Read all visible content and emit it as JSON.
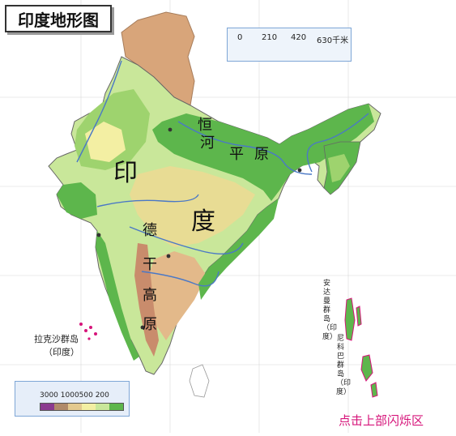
{
  "title": "印度地形图",
  "scale": {
    "ticks": [
      "0",
      "210",
      "420",
      "630千米"
    ]
  },
  "regions": {
    "india_big_1": "印",
    "india_big_2": "度",
    "gangetic": [
      "恒",
      "河",
      "平",
      "原"
    ],
    "deccan": [
      "德",
      "干",
      "高",
      "原"
    ],
    "lakshadweep": "拉克沙群岛",
    "lakshadweep_note": "（印度）",
    "andaman": "安达曼群岛（印度）",
    "nicobar": "尼科巴群岛（印度）"
  },
  "legend": {
    "labels": "3000 1000500 200",
    "swatches": [
      "#8b3a8f",
      "#b08a6a",
      "#e3c98f",
      "#f3efa3",
      "#c9e79a",
      "#5db64c"
    ]
  },
  "link_text": "点击上部闪烁区",
  "colors": {
    "lowland": "#5db64c",
    "plateau": "#c9e79a",
    "upland": "#e8dc94",
    "highland": "#e3b98a",
    "mountain": "#c98c6c",
    "border_region": "#d8a57a",
    "sea": "#ffffff",
    "river": "#4a78c6"
  }
}
